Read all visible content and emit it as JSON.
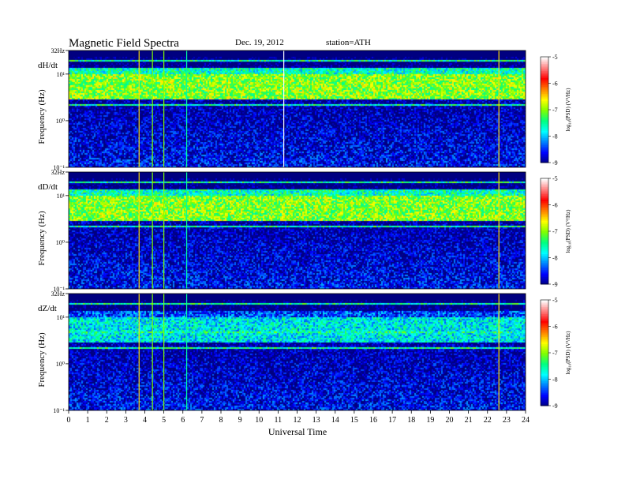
{
  "title": "Magnetic Field Spectra",
  "date": "Dec. 19, 2012",
  "station": "station=ATH",
  "xlabel": "Universal Time",
  "ylabel": "Frequency (Hz)",
  "colorbar_label": "log₁₀(PSD) (V²/Hz)",
  "chart_data": [
    {
      "type": "heatmap",
      "panel": "dH/dt",
      "xlabel": "Universal Time",
      "ylabel": "Frequency (Hz)",
      "x_range": [
        0,
        24
      ],
      "y_range": [
        0.1,
        32
      ],
      "y_scale": "log",
      "y_ticks": [
        {
          "value": 32,
          "label": "32Hz"
        },
        {
          "value": 10,
          "label": "10¹"
        },
        {
          "value": 1,
          "label": "10⁰"
        },
        {
          "value": 0.1,
          "label": "10⁻¹"
        }
      ],
      "colorbar": {
        "range": [
          -9,
          -5
        ],
        "ticks": [
          -5,
          -6,
          -7,
          -8,
          -9
        ],
        "label": "log₁₀(PSD) (V²/Hz)"
      },
      "features": [
        {
          "name": "broadband band",
          "freq_range": [
            3,
            10
          ],
          "level": -7
        },
        {
          "name": "tone 2.3 Hz",
          "freq": 2.3,
          "level": -7.5
        },
        {
          "name": "tone 5 Hz",
          "freq": 5,
          "level": -7.5
        },
        {
          "name": "tone 20 Hz",
          "freq": 20,
          "level": -7.5
        },
        {
          "name": "spike",
          "time": 3.7,
          "level": -6.5
        },
        {
          "name": "spike",
          "time": 4.4,
          "level": -7
        },
        {
          "name": "spike",
          "time": 5.0,
          "level": -7
        },
        {
          "name": "spike",
          "time": 6.2,
          "level": -7.5
        },
        {
          "name": "spike",
          "time": 11.3,
          "level": -5
        },
        {
          "name": "spike",
          "time": 22.6,
          "level": -6.5
        }
      ]
    },
    {
      "type": "heatmap",
      "panel": "dD/dt",
      "xlabel": "Universal Time",
      "ylabel": "Frequency (Hz)",
      "x_range": [
        0,
        24
      ],
      "y_range": [
        0.1,
        32
      ],
      "y_scale": "log",
      "y_ticks": [
        {
          "value": 32,
          "label": "32Hz"
        },
        {
          "value": 10,
          "label": "10¹"
        },
        {
          "value": 1,
          "label": "10⁰"
        },
        {
          "value": 0.1,
          "label": "10⁻¹"
        }
      ],
      "colorbar": {
        "range": [
          -9,
          -5
        ],
        "ticks": [
          -5,
          -6,
          -7,
          -8,
          -9
        ],
        "label": "log₁₀(PSD) (V²/Hz)"
      },
      "features": [
        {
          "name": "broadband band",
          "freq_range": [
            3,
            10
          ],
          "level": -7
        },
        {
          "name": "tone 2.3 Hz",
          "freq": 2.3,
          "level": -7.5
        },
        {
          "name": "tone 5 Hz",
          "freq": 5,
          "level": -7.5
        },
        {
          "name": "tone 20 Hz",
          "freq": 20,
          "level": -7.5
        },
        {
          "name": "spike",
          "time": 3.7,
          "level": -6.5
        },
        {
          "name": "spike",
          "time": 4.4,
          "level": -7
        },
        {
          "name": "spike",
          "time": 5.0,
          "level": -7
        },
        {
          "name": "spike",
          "time": 6.2,
          "level": -7.5
        },
        {
          "name": "spike",
          "time": 22.6,
          "level": -6.5
        }
      ]
    },
    {
      "type": "heatmap",
      "panel": "dZ/dt",
      "xlabel": "Universal Time",
      "ylabel": "Frequency (Hz)",
      "x_range": [
        0,
        24
      ],
      "y_range": [
        0.1,
        32
      ],
      "y_scale": "log",
      "y_ticks": [
        {
          "value": 32,
          "label": "32Hz"
        },
        {
          "value": 10,
          "label": "10¹"
        },
        {
          "value": 1,
          "label": "10⁰"
        },
        {
          "value": 0.1,
          "label": "10⁻¹"
        }
      ],
      "colorbar": {
        "range": [
          -9,
          -5
        ],
        "ticks": [
          -5,
          -6,
          -7,
          -8,
          -9
        ],
        "label": "log₁₀(PSD) (V²/Hz)"
      },
      "features": [
        {
          "name": "broadband band",
          "freq_range": [
            3,
            10
          ],
          "level": -7.8
        },
        {
          "name": "tone 2.3 Hz",
          "freq": 2.3,
          "level": -7.5
        },
        {
          "name": "tone 5 Hz",
          "freq": 5,
          "level": -7.5
        },
        {
          "name": "tone 20 Hz",
          "freq": 20,
          "level": -7.5
        },
        {
          "name": "spike",
          "time": 3.7,
          "level": -6.5
        },
        {
          "name": "spike",
          "time": 4.4,
          "level": -7
        },
        {
          "name": "spike",
          "time": 5.0,
          "level": -7
        },
        {
          "name": "spike",
          "time": 6.2,
          "level": -7.5
        },
        {
          "name": "spike",
          "time": 22.6,
          "level": -6.5
        }
      ]
    }
  ],
  "x_ticks": [
    0,
    1,
    2,
    3,
    4,
    5,
    6,
    7,
    8,
    9,
    10,
    11,
    12,
    13,
    14,
    15,
    16,
    17,
    18,
    19,
    20,
    21,
    22,
    23,
    24
  ],
  "colormap": [
    "#000080",
    "#0000ff",
    "#0080ff",
    "#00ffff",
    "#00ff80",
    "#80ff00",
    "#ffff00",
    "#ff8000",
    "#ff0000",
    "#ff8080",
    "#ffffff"
  ]
}
